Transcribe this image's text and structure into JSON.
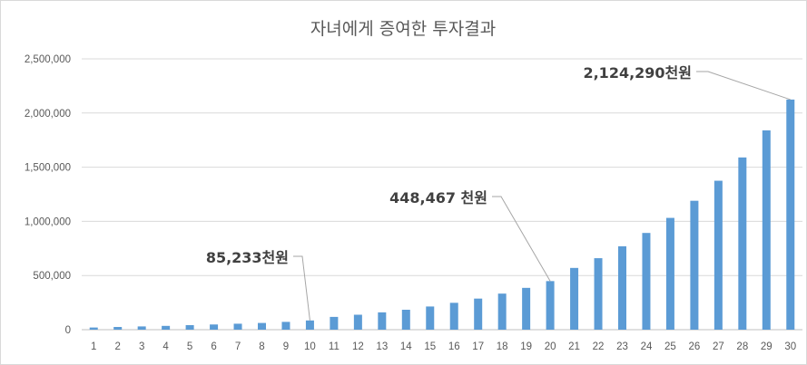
{
  "chart_data": {
    "type": "bar",
    "title": "자녀에게 증여한 투자결과",
    "xlabel": "",
    "ylabel": "",
    "ylim": [
      0,
      2500000
    ],
    "yticks": [
      "0",
      "500,000",
      "1,000,000",
      "1,500,000",
      "2,000,000",
      "2,500,000"
    ],
    "ytick_values": [
      0,
      500000,
      1000000,
      1500000,
      2000000,
      2500000
    ],
    "categories": [
      "1",
      "2",
      "3",
      "4",
      "5",
      "6",
      "7",
      "8",
      "9",
      "10",
      "11",
      "12",
      "13",
      "14",
      "15",
      "16",
      "17",
      "18",
      "19",
      "20",
      "21",
      "22",
      "23",
      "24",
      "25",
      "26",
      "27",
      "28",
      "29",
      "30"
    ],
    "values": [
      20000,
      25000,
      30000,
      35000,
      42000,
      48000,
      55000,
      62000,
      72000,
      85233,
      118000,
      138000,
      160000,
      184000,
      214000,
      248000,
      287000,
      333000,
      386000,
      448467,
      570000,
      660000,
      770000,
      893000,
      1032000,
      1190000,
      1375000,
      1590000,
      1840000,
      2124290
    ],
    "grid": true,
    "color": "#5b9bd5",
    "annotations": [
      {
        "label": "85,233천원",
        "index": 9
      },
      {
        "label": "448,467 천원",
        "index": 19
      },
      {
        "label": "2,124,290천원",
        "index": 29
      }
    ]
  }
}
